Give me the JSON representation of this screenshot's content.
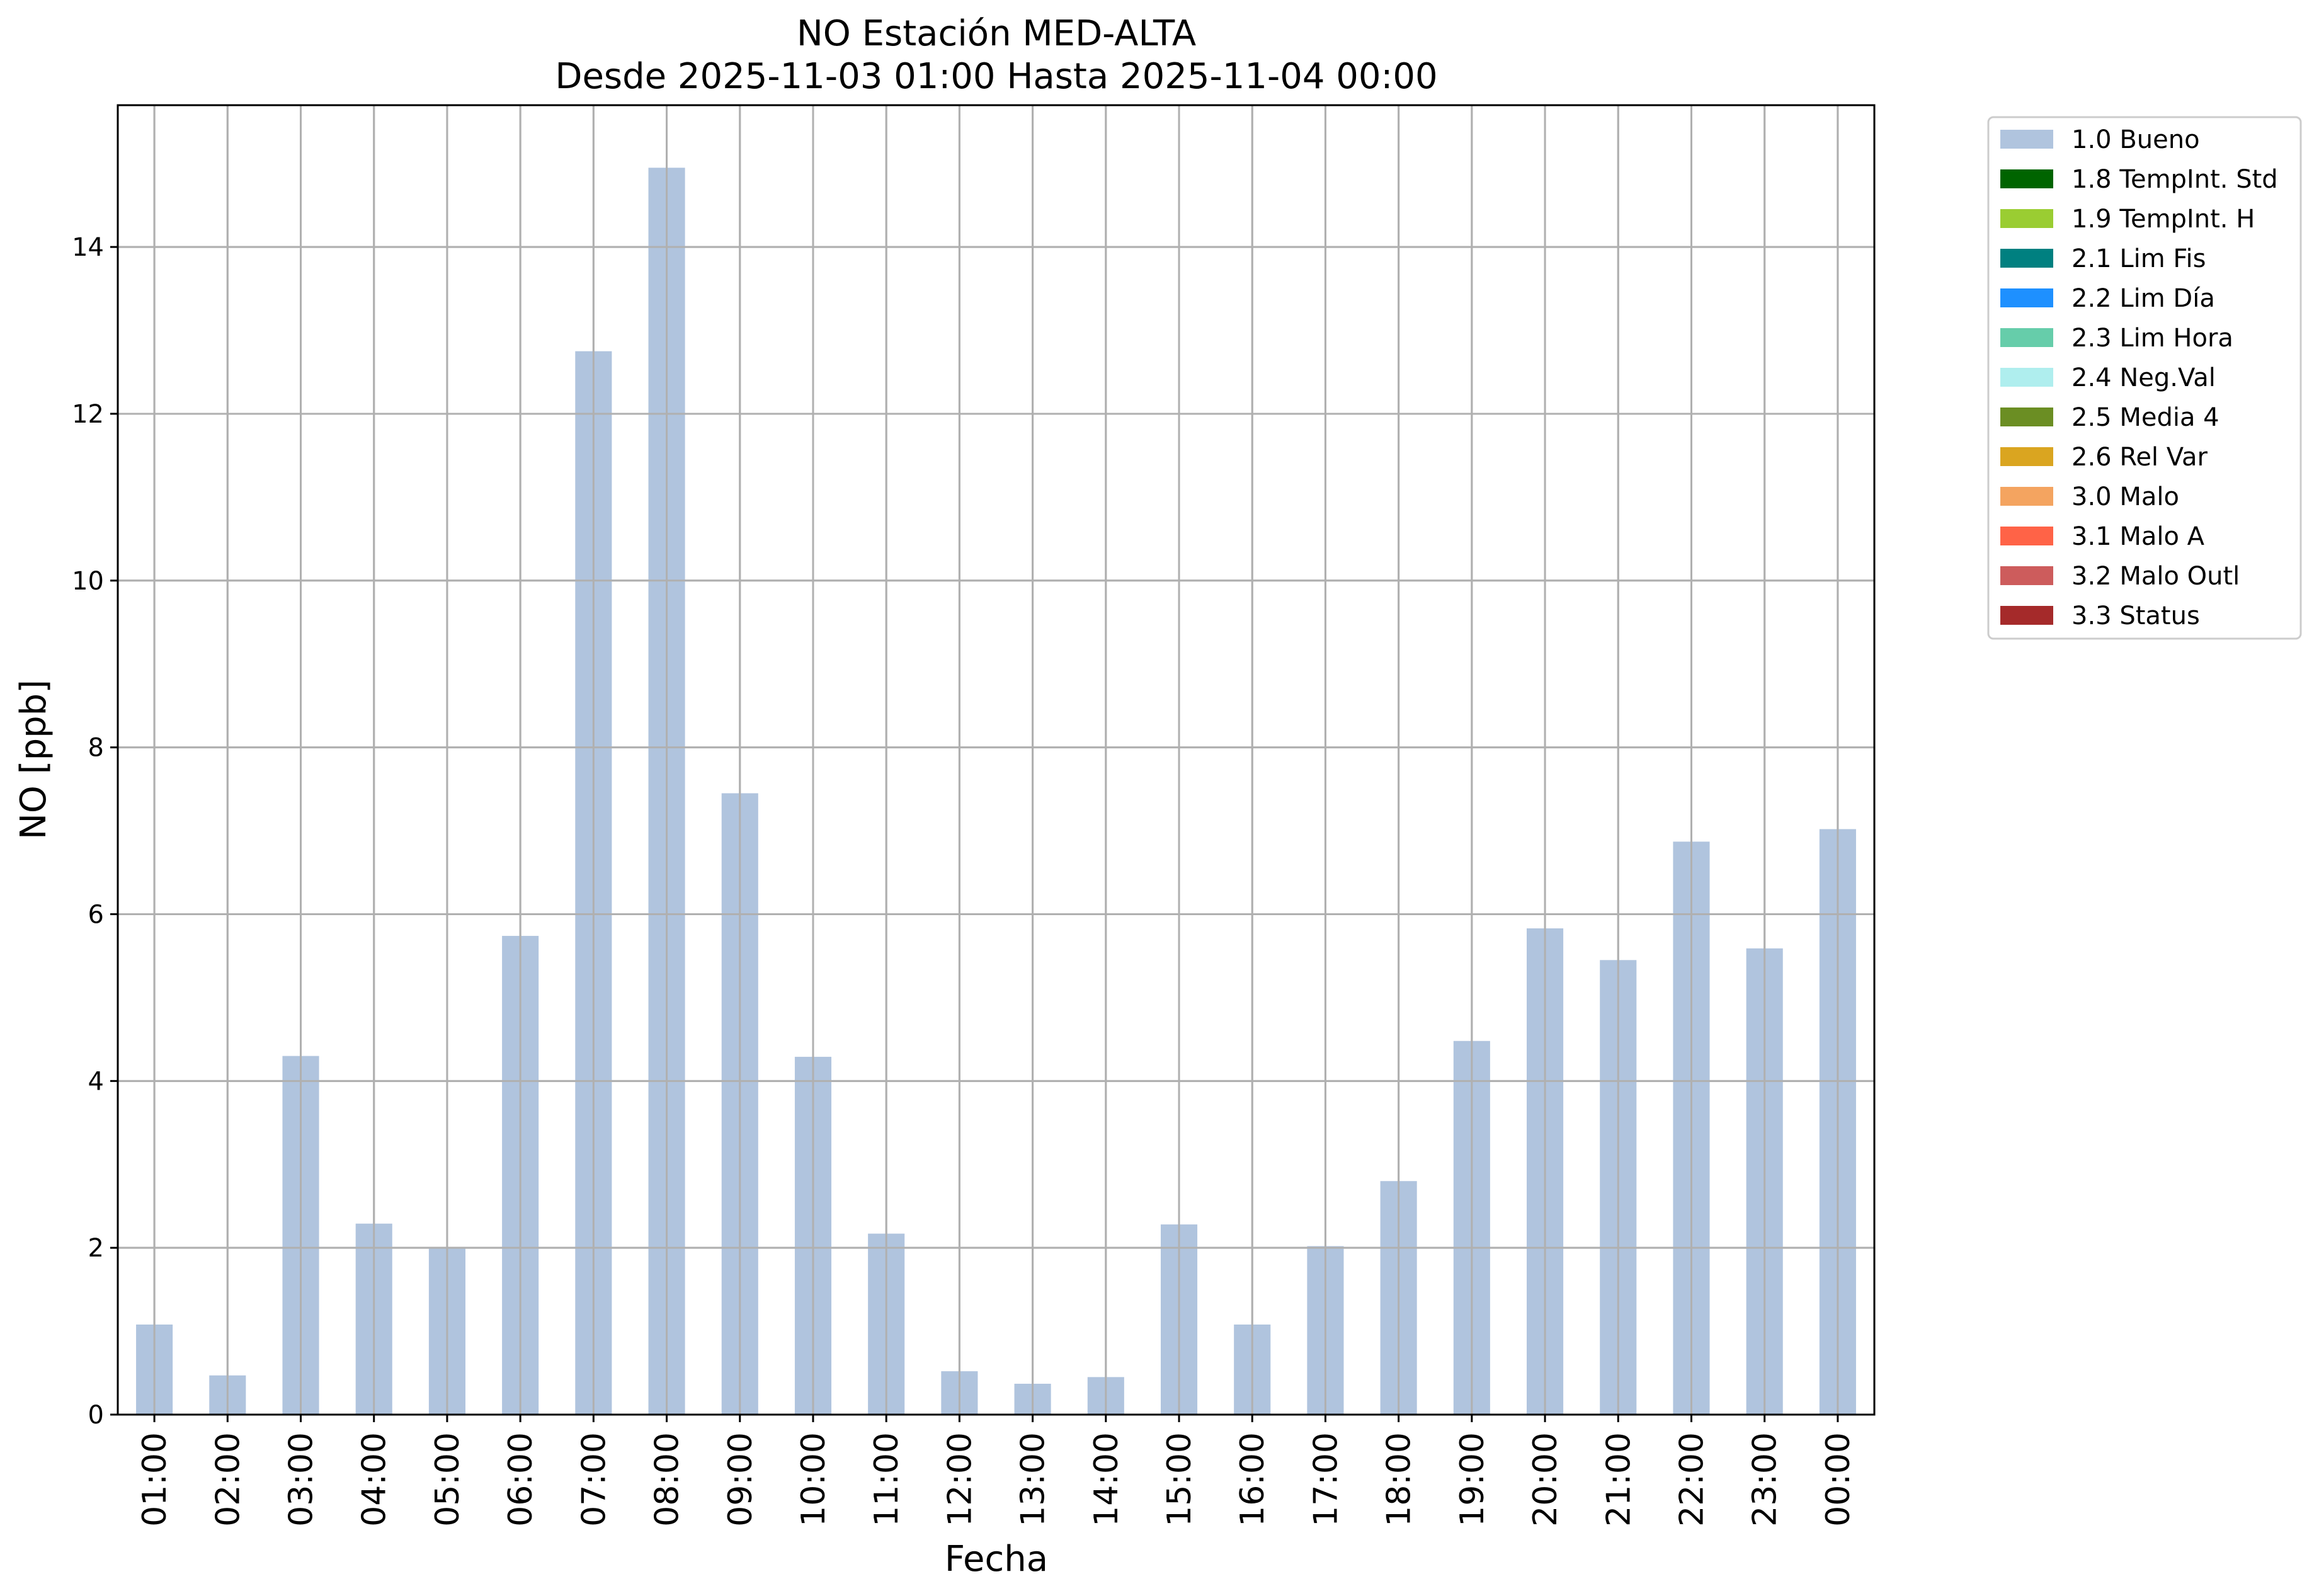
{
  "chart_data": {
    "type": "bar",
    "title": "NO Estación MED-ALTA",
    "subtitle": "Desde 2025-11-03 01:00 Hasta 2025-11-04 00:00",
    "xlabel": "Fecha",
    "ylabel": "NO [ppb]",
    "categories": [
      "01:00",
      "02:00",
      "03:00",
      "04:00",
      "05:00",
      "06:00",
      "07:00",
      "08:00",
      "09:00",
      "10:00",
      "11:00",
      "12:00",
      "13:00",
      "14:00",
      "15:00",
      "16:00",
      "17:00",
      "18:00",
      "19:00",
      "20:00",
      "21:00",
      "22:00",
      "23:00",
      "00:00"
    ],
    "series": [
      {
        "name": "1.0 Bueno",
        "color": "#b0c4de",
        "values": [
          1.08,
          0.47,
          4.3,
          2.29,
          1.99,
          5.74,
          12.75,
          14.95,
          7.45,
          4.29,
          2.17,
          0.52,
          0.37,
          0.45,
          2.28,
          1.08,
          2.02,
          2.8,
          4.48,
          5.83,
          5.45,
          6.87,
          5.59,
          7.02
        ]
      }
    ],
    "ylim": [
      0,
      15.7
    ],
    "yticks": [
      0,
      2,
      4,
      6,
      8,
      10,
      12,
      14
    ],
    "grid": true,
    "legend_position": "outside-top-right",
    "legend": [
      {
        "label": "1.0 Bueno",
        "color": "#b0c4de"
      },
      {
        "label": "1.8 TempInt. Std",
        "color": "#006400"
      },
      {
        "label": "1.9 TempInt. H",
        "color": "#9acd32"
      },
      {
        "label": "2.1 Lim Fis",
        "color": "#008080"
      },
      {
        "label": "2.2 Lim Día",
        "color": "#1e90ff"
      },
      {
        "label": "2.3 Lim Hora",
        "color": "#66cdaa"
      },
      {
        "label": "2.4 Neg.Val",
        "color": "#afeeee"
      },
      {
        "label": "2.5 Media 4",
        "color": "#6b8e23"
      },
      {
        "label": "2.6 Rel Var",
        "color": "#daa520"
      },
      {
        "label": "3.0 Malo",
        "color": "#f4a460"
      },
      {
        "label": "3.1 Malo A",
        "color": "#ff6347"
      },
      {
        "label": "3.2 Malo Outl",
        "color": "#cd5c5c"
      },
      {
        "label": "3.3 Status",
        "color": "#a52a2a"
      }
    ]
  }
}
